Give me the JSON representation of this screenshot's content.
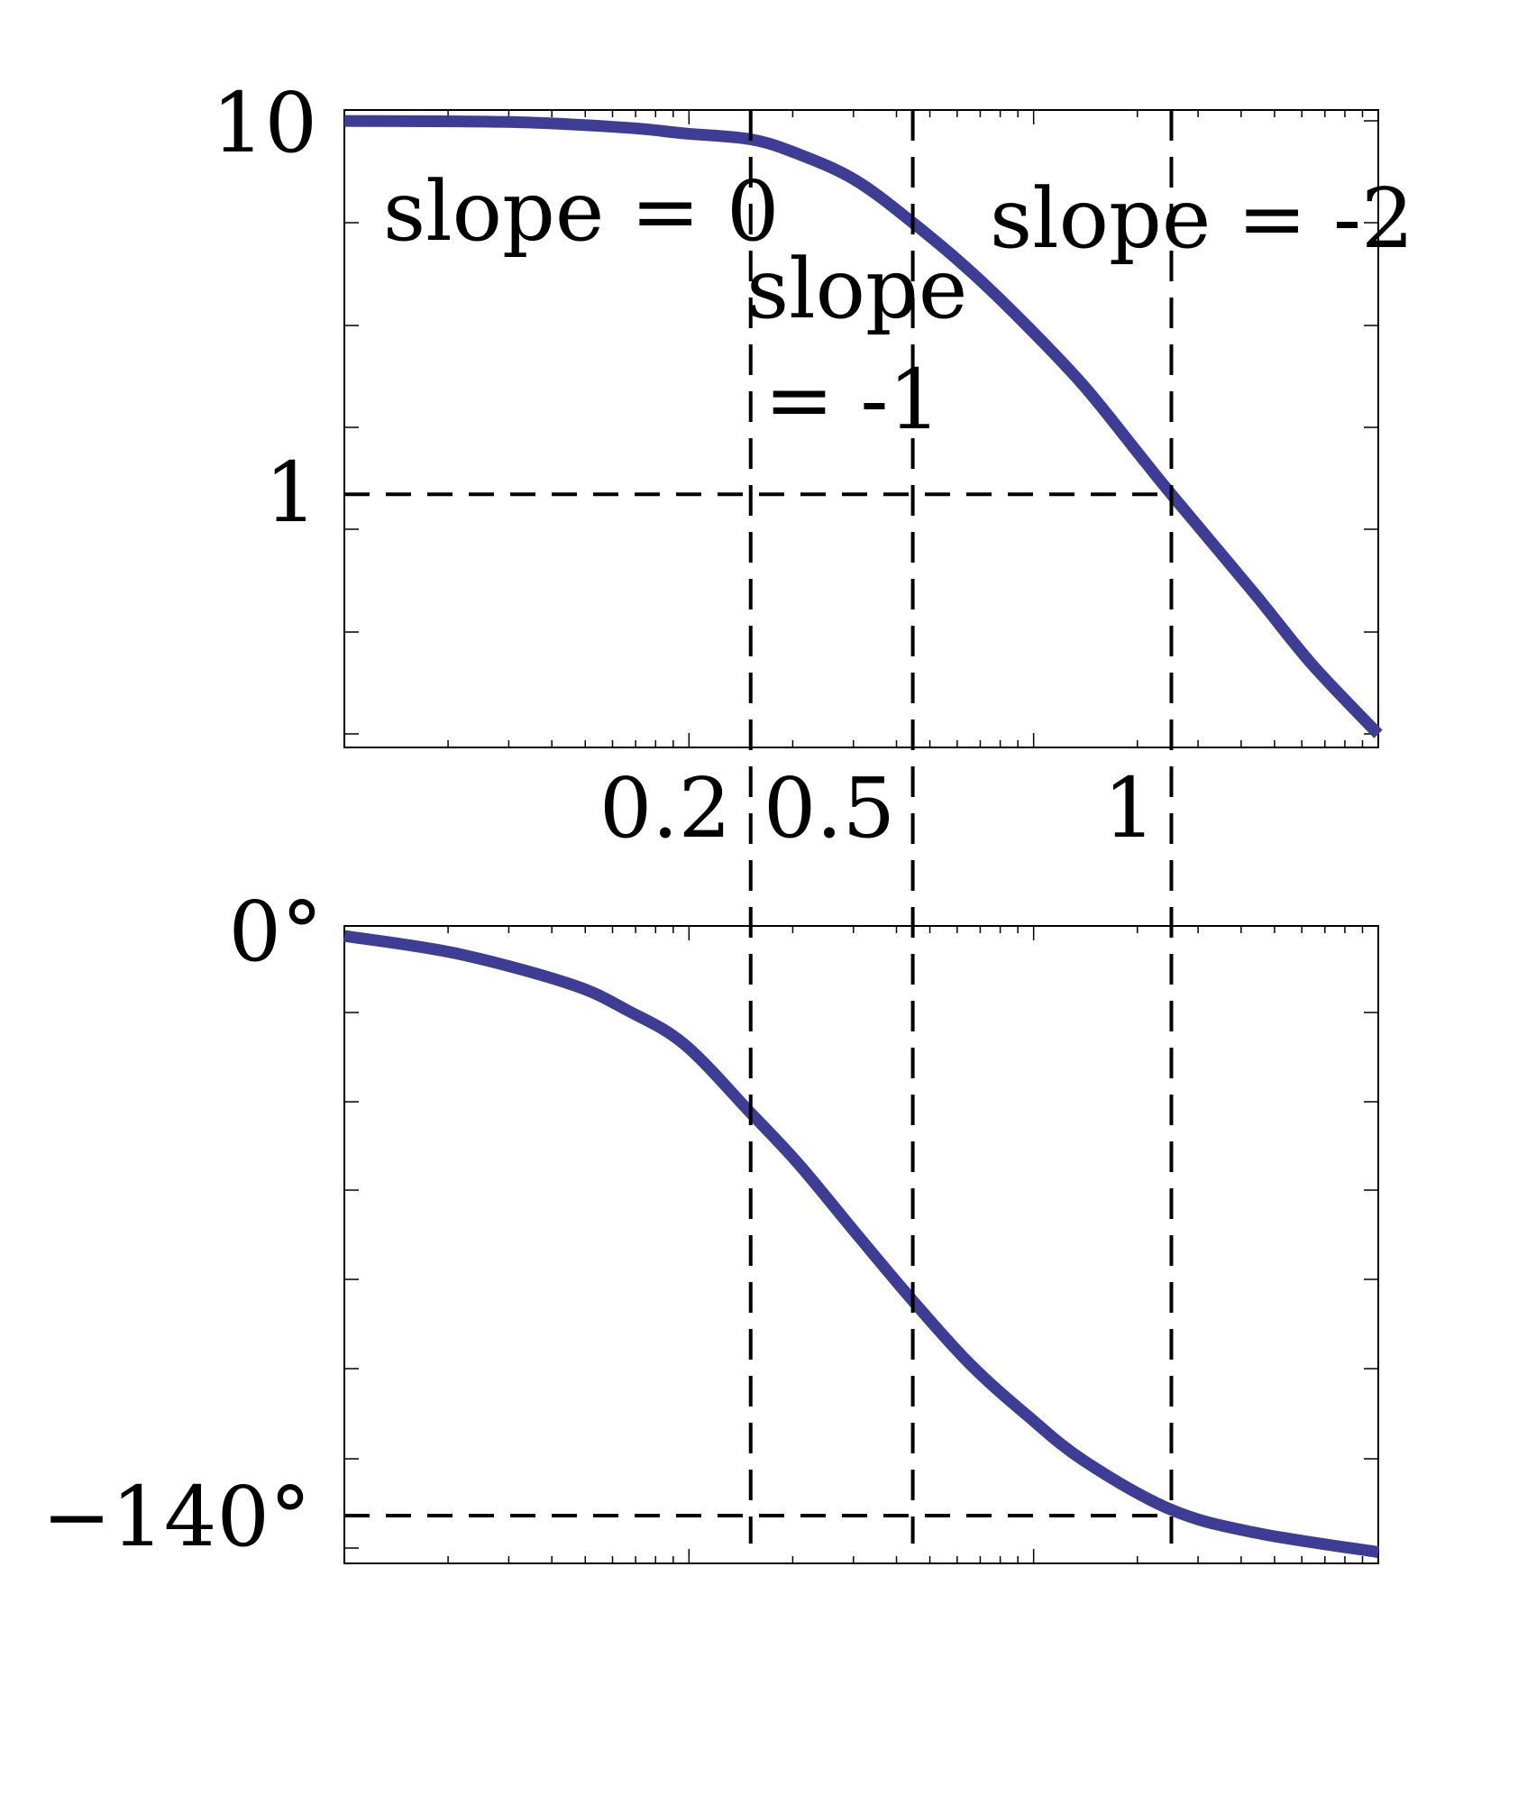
{
  "chart_data": [
    {
      "type": "line",
      "xscale": "log",
      "yscale": "log",
      "xlim": [
        0.01,
        10
      ],
      "ylim": [
        0.21,
        10.7
      ],
      "grid": false,
      "ytick_labels": [
        {
          "value": 10,
          "label": "10"
        },
        {
          "value": 1,
          "label": "1"
        }
      ],
      "xtick_labels": [
        "0.2",
        "0.5",
        "1"
      ],
      "annotations": [
        "slope = 0",
        "slope",
        "= -1",
        "slope = -2"
      ],
      "reference_lines": {
        "vertical": [
          0.151,
          0.446,
          2.51
        ],
        "horizontal": [
          1
        ]
      },
      "color": "#3d3d96",
      "series": [
        {
          "x": [
            0.01,
            0.0309,
            0.0662,
            0.097,
            0.151,
            0.208,
            0.304,
            0.446,
            0.653,
            0.955,
            1.4,
            2.05,
            2.51,
            4.39,
            6.43,
            10
          ],
          "y": [
            10,
            9.93,
            9.59,
            9.26,
            8.93,
            8.15,
            6.94,
            5.34,
            3.97,
            2.83,
            1.95,
            1.26,
            1.0,
            0.54,
            0.35,
            0.228
          ]
        }
      ]
    },
    {
      "type": "line",
      "xscale": "log",
      "xlim": [
        0.01,
        10
      ],
      "ylim": [
        -151.5,
        1.9
      ],
      "grid": false,
      "ytick_labels": [
        {
          "value": 0,
          "label": "0°"
        },
        {
          "value": -140,
          "label": "−140°"
        }
      ],
      "reference_lines": {
        "vertical": [
          0.151,
          0.446,
          2.51
        ],
        "horizontal": [
          -140
        ]
      },
      "color": "#3d3d96",
      "series": [
        {
          "x": [
            0.01,
            0.0211,
            0.0453,
            0.0662,
            0.097,
            0.151,
            0.208,
            0.304,
            0.446,
            0.653,
            0.955,
            1.4,
            2.51,
            4.39,
            10
          ],
          "y": [
            -0.5,
            -4.7,
            -12.1,
            -18.4,
            -26.6,
            -43.1,
            -55.4,
            -71.9,
            -88.3,
            -103.5,
            -115.8,
            -126.8,
            -138.6,
            -144.1,
            -148.8
          ]
        }
      ]
    }
  ]
}
